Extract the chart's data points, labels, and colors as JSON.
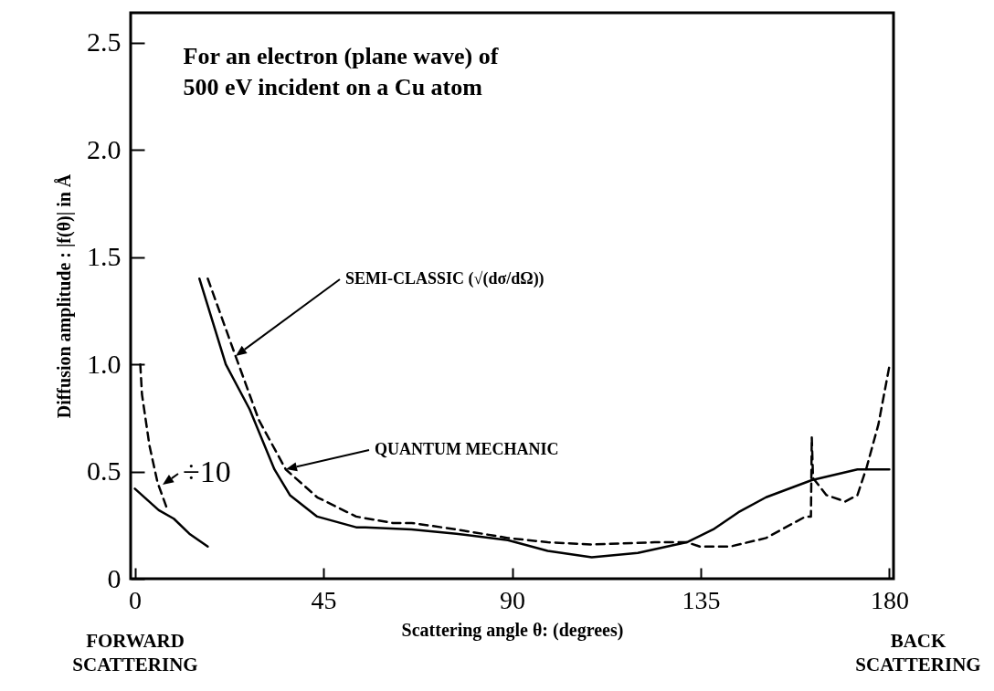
{
  "chart_data": {
    "type": "line",
    "title": "For an electron (plane wave) of\n500 eV incident on a Cu atom",
    "xlabel": "Scattering angle θ: (degrees)",
    "ylabel": "Diffusion amplitude : |f(θ)| in Å",
    "xlim": [
      -1,
      181
    ],
    "ylim": [
      0,
      2.64
    ],
    "xticks": [
      0,
      45,
      90,
      135,
      180
    ],
    "yticks": [
      0,
      0.5,
      {
        "value": 1,
        "label": "1.0"
      },
      1.5,
      {
        "value": 2,
        "label": "2.0"
      },
      2.5
    ],
    "grid": false,
    "series": [
      {
        "color": "#000000",
        "line_style": "solid",
        "x": [
          15.4,
          21.7,
          27.4,
          33.3,
          37,
          43.5,
          52.8,
          55,
          66,
          76.7,
          89,
          98.5,
          109,
          120,
          131.7,
          138,
          144,
          150.6,
          161.5,
          172.4,
          180
        ],
        "values": [
          1.4,
          1.0,
          0.79,
          0.51,
          0.39,
          0.29,
          0.24,
          0.24,
          0.23,
          0.21,
          0.18,
          0.13,
          0.1,
          0.12,
          0.17,
          0.23,
          0.31,
          0.38,
          0.46,
          0.51,
          0.51
        ]
      },
      {
        "color": "#000000",
        "line_style": "dashed",
        "x": [
          17.4,
          24,
          29.6,
          36,
          43.5,
          52.8,
          61.5,
          66,
          76.7,
          89,
          98.5,
          109,
          124,
          131.7,
          134.8,
          142,
          150.6,
          160,
          161.3,
          161.5,
          161.8,
          165,
          169.5,
          172.4,
          174.6,
          177.4,
          180
        ],
        "values": [
          1.4,
          1.04,
          0.74,
          0.51,
          0.38,
          0.29,
          0.26,
          0.26,
          0.23,
          0.19,
          0.17,
          0.16,
          0.17,
          0.17,
          0.15,
          0.15,
          0.19,
          0.29,
          0.29,
          0.66,
          0.47,
          0.39,
          0.36,
          0.39,
          0.52,
          0.72,
          0.99
        ]
      },
      {
        "color": "#000000",
        "line_style": "solid",
        "x": [
          0,
          5.7,
          9.3,
          13,
          17.4
        ],
        "values": [
          0.42,
          0.32,
          0.28,
          0.21,
          0.15
        ]
      },
      {
        "color": "#000000",
        "line_style": "dashed",
        "x": [
          1.3,
          1.7,
          3.5,
          5.4,
          7.8
        ],
        "values": [
          1.0,
          0.86,
          0.62,
          0.45,
          0.32
        ]
      }
    ],
    "annotations": [
      "SEMI-CLASSIC  (√(dσ/dΩ))",
      "QUANTUM MECHANIC",
      "÷10",
      "FORWARD\nSCATTERING",
      "BACK\nSCATTERING"
    ]
  }
}
